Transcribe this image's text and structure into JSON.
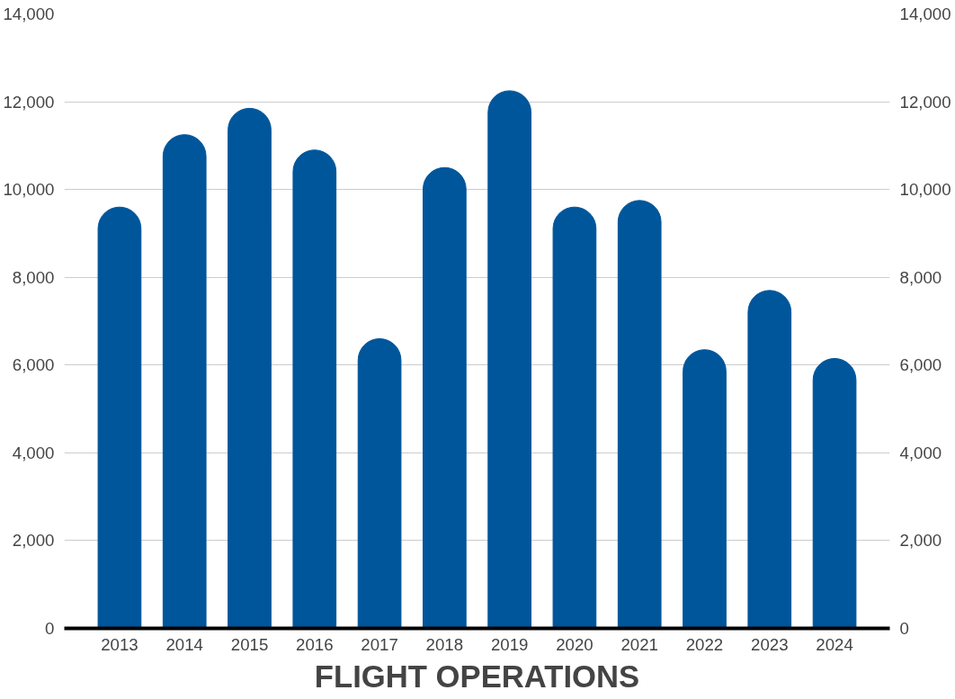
{
  "chart_data": {
    "type": "bar",
    "title": "FLIGHT OPERATIONS",
    "categories": [
      "2013",
      "2014",
      "2015",
      "2016",
      "2017",
      "2018",
      "2019",
      "2020",
      "2021",
      "2022",
      "2023",
      "2024"
    ],
    "values": [
      9600,
      11250,
      11850,
      10900,
      6600,
      10500,
      12250,
      9600,
      9750,
      6350,
      7700,
      6150
    ],
    "color": "#00569b",
    "ylim": [
      0,
      14000
    ],
    "yticks": [
      {
        "value": 0,
        "label": "0"
      },
      {
        "value": 2000,
        "label": "2,000"
      },
      {
        "value": 4000,
        "label": "4,000"
      },
      {
        "value": 6000,
        "label": "6,000"
      },
      {
        "value": 8000,
        "label": "8,000"
      },
      {
        "value": 10000,
        "label": "10,000"
      },
      {
        "value": 12000,
        "label": "12,000"
      },
      {
        "value": 14000,
        "label": "14,000"
      }
    ],
    "y2lim": [
      0,
      14000
    ],
    "y2ticks": [
      {
        "value": 0,
        "label": "0"
      },
      {
        "value": 2000,
        "label": "2,000"
      },
      {
        "value": 4000,
        "label": "4,000"
      },
      {
        "value": 6000,
        "label": "6,000"
      },
      {
        "value": 8000,
        "label": "8,000"
      },
      {
        "value": 10000,
        "label": "10,000"
      },
      {
        "value": 12000,
        "label": "12,000"
      },
      {
        "value": 14000,
        "label": "14,000"
      }
    ],
    "grid": "y"
  }
}
